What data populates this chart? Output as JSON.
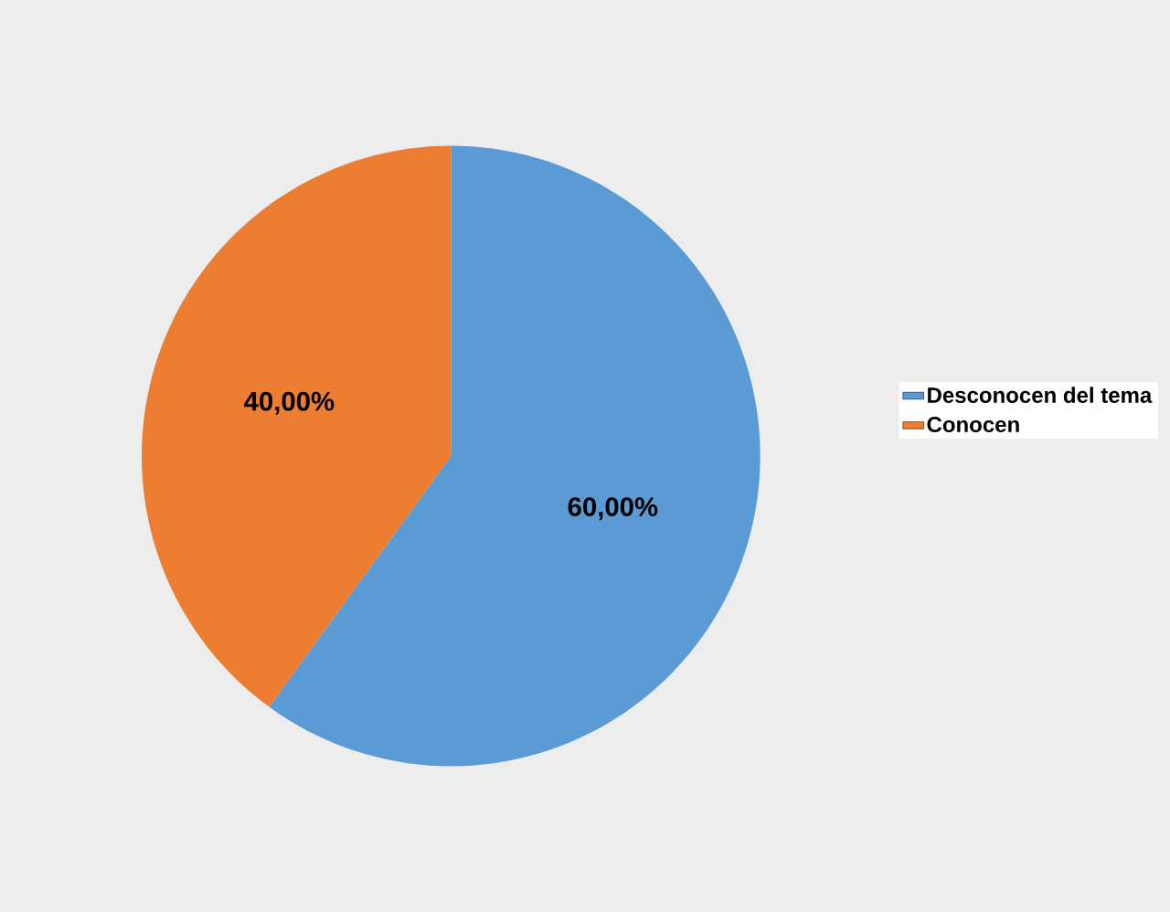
{
  "chart_data": {
    "type": "pie",
    "categories": [
      "Desconocen del tema",
      "Conocen"
    ],
    "values": [
      60,
      40
    ],
    "colors": [
      "#5b9bd5",
      "#ed7d31"
    ],
    "value_labels": [
      "60,00%",
      "40,00%"
    ],
    "legend": "right"
  }
}
